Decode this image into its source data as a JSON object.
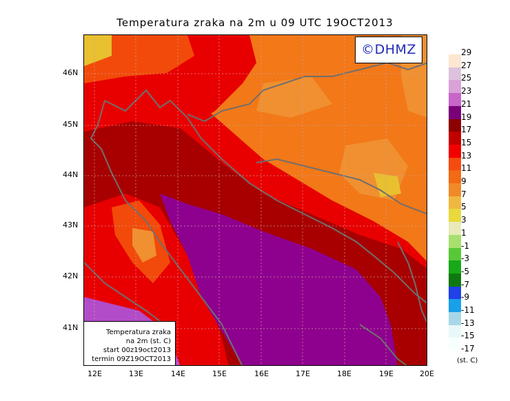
{
  "title": "Temperatura zraka na 2m u 09 UTC 19OCT2013",
  "logo": "©DHMZ",
  "info_box": {
    "line1": "Temperatura zraka",
    "line2": "na 2m (st. C)",
    "line3": "start 00z19oct2013",
    "line4": "termin 09Z19OCT2013"
  },
  "axes": {
    "x_ticks": [
      "12E",
      "13E",
      "14E",
      "15E",
      "16E",
      "17E",
      "18E",
      "19E",
      "20E"
    ],
    "y_ticks": [
      "46N",
      "45N",
      "44N",
      "43N",
      "42N",
      "41N"
    ]
  },
  "legend": {
    "unit": "(st. C)",
    "labels": [
      "29",
      "27",
      "25",
      "23",
      "21",
      "19",
      "17",
      "15",
      "13",
      "11",
      "9",
      "7",
      "5",
      "3",
      "1",
      "-1",
      "-3",
      "-5",
      "-7",
      "-9",
      "-11",
      "-13",
      "-15",
      "-17"
    ],
    "colors": [
      "#fde7d0",
      "#dcc2dd",
      "#d9a2d8",
      "#c765c8",
      "#7a007a",
      "#8e0000",
      "#c10000",
      "#f20000",
      "#f44b10",
      "#f26a14",
      "#f08a28",
      "#f0b840",
      "#e8d93c",
      "#e8eab8",
      "#a8e070",
      "#58c838",
      "#18a818",
      "#107810",
      "#2040e8",
      "#18a0e8",
      "#a8d8e8",
      "#e8f8f8",
      "#f8ffff"
    ]
  },
  "colors": {
    "sea_purple": "#8e008e",
    "sea_magenta": "#b24cc8",
    "dark_red": "#a80000",
    "red": "#e80000",
    "orange_red": "#f24a0a",
    "orange": "#f27818",
    "light_orange": "#f09030",
    "yellow": "#e8c030",
    "coast": "#6f6f6f"
  }
}
